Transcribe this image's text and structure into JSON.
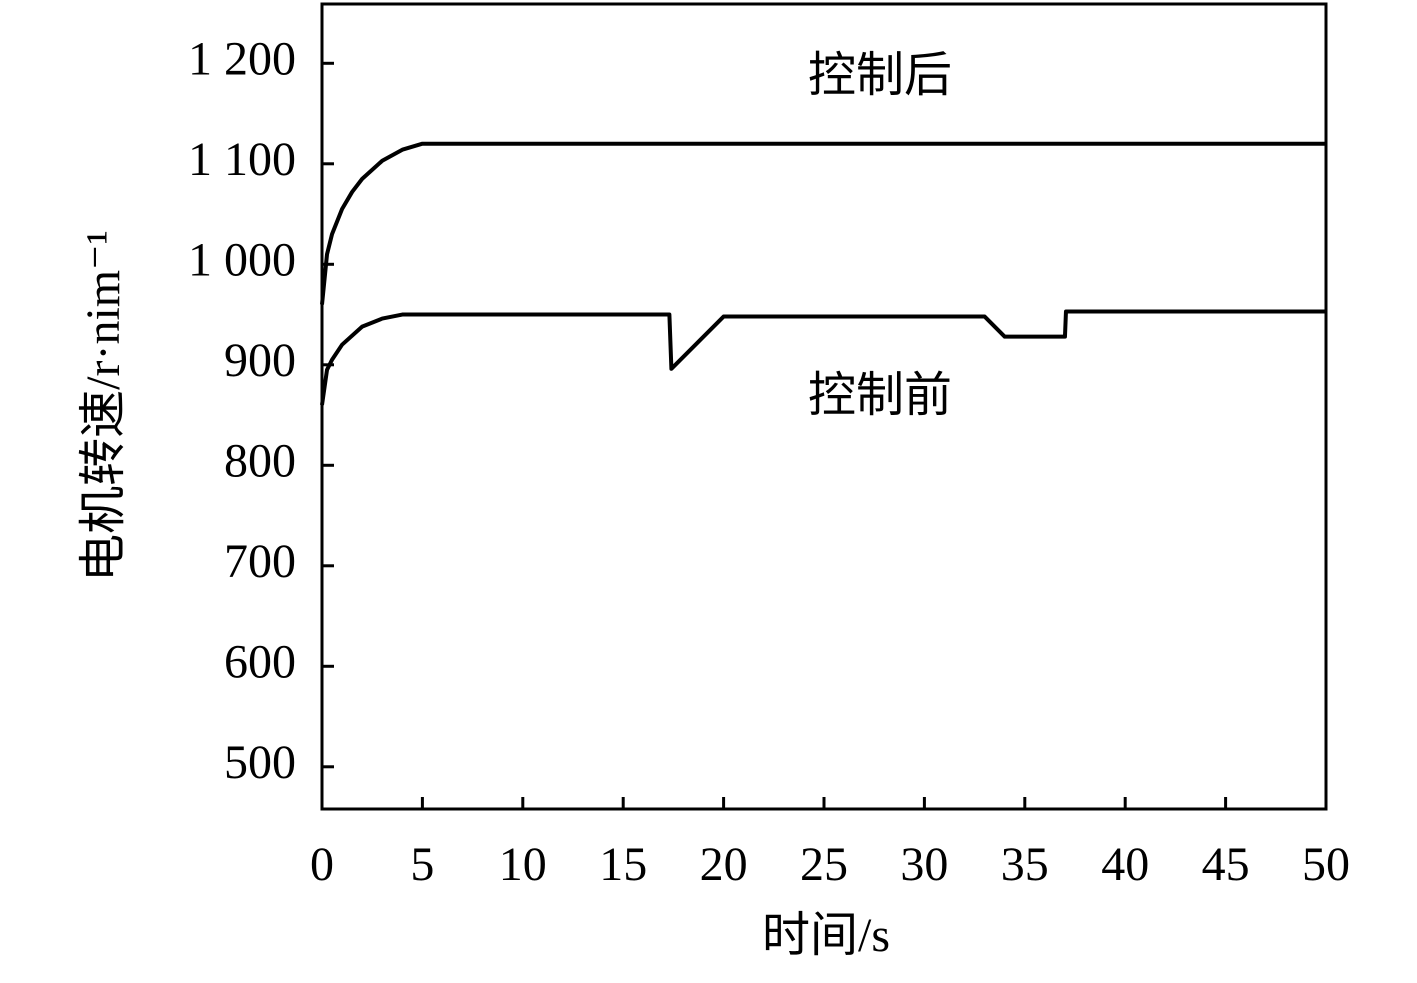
{
  "chart_data": {
    "type": "line",
    "xlabel": "时间/s",
    "ylabel": "电机转速/r·nim⁻¹",
    "xlim": [
      0,
      50
    ],
    "xticks": [
      0,
      5,
      10,
      15,
      20,
      25,
      30,
      35,
      40,
      45,
      50
    ],
    "ylim": [
      458,
      1259
    ],
    "yticks": [
      500,
      600,
      700,
      800,
      900,
      {
        "value": 1000,
        "label": "1 000"
      },
      {
        "value": 1100,
        "label": "1 100"
      },
      {
        "value": 1200,
        "label": "1 200"
      }
    ],
    "series": [
      {
        "name": "控制后",
        "color": "#000000",
        "x": [
          0,
          0.25,
          0.5,
          1,
          1.5,
          2,
          3,
          4,
          5,
          50
        ],
        "values": [
          960,
          1010,
          1030,
          1055,
          1072,
          1085,
          1103,
          1114,
          1120,
          1120
        ]
      },
      {
        "name": "控制前",
        "color": "#000000",
        "x": [
          0,
          0.25,
          0.5,
          1,
          2,
          3,
          4,
          17.3,
          17.4,
          20,
          33,
          34,
          37,
          37.05,
          50
        ],
        "values": [
          860,
          895,
          905,
          920,
          938,
          946,
          950,
          950,
          896,
          948,
          948,
          928,
          928,
          953,
          953
        ]
      }
    ]
  }
}
